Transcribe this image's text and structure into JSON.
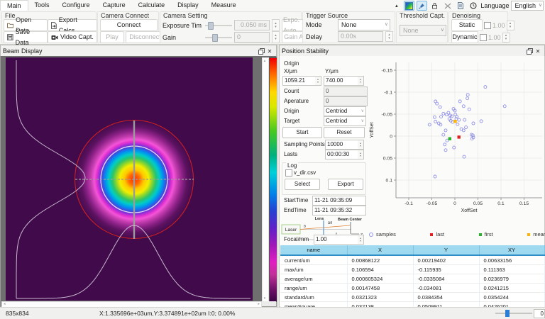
{
  "colors": {
    "accent": "#2a7fd4",
    "table_header": "#9ed9f0",
    "beam_bg": "#410a4b",
    "samples": "#9191e6",
    "last": "#e02020",
    "first": "#28b428",
    "mean": "#ffb400"
  },
  "icons": {
    "collapse-icon": "▴",
    "palette-icon": "gradient-swatch",
    "pin-icon": "pushpin",
    "lock-icon": "padlock",
    "scale-icon": "cross-arrows",
    "report-icon": "document",
    "about-icon": "clock",
    "combo-chevron": "∨",
    "spinner-up": "▴",
    "spinner-down": "▾",
    "close-icon": "✕",
    "float-icon": "overlapping-squares",
    "folder-icon": "folder",
    "save-icon": "floppy-disk",
    "export-icon": "document-arrow",
    "video-icon": "camcorder"
  },
  "menu": {
    "tabs": [
      {
        "label": "Main",
        "selected": true
      },
      {
        "label": "Tools"
      },
      {
        "label": "Configure"
      },
      {
        "label": "Capture"
      },
      {
        "label": "Calculate"
      },
      {
        "label": "Display"
      },
      {
        "label": "Measure"
      }
    ],
    "language_label": "Language",
    "language_value": "English"
  },
  "toolbar": {
    "file": {
      "title": "File",
      "open": "Open Data",
      "save": "Save Data",
      "export": "Export Calcs",
      "video": "Video Capt."
    },
    "camera_connect": {
      "title": "Camera Connect",
      "connect": "Connect",
      "play": "Play",
      "disconnect": "Disconnect"
    },
    "camera_setting": {
      "title": "Camera Setting",
      "exposure_label": "Exposure Tim",
      "exposure_value": "0.050 ms",
      "expo_auto": "Expo. Auto",
      "gain_label": "Gain",
      "gain_value": "0",
      "gain_auto": "Gain Auto"
    },
    "trigger": {
      "title": "Trigger Source",
      "mode_label": "Mode",
      "mode_value": "None",
      "delay_label": "Delay",
      "delay_value": "0.00s"
    },
    "threshold": {
      "title": "Threshold Capt.",
      "value": "None"
    },
    "denoising": {
      "title": "Denoising",
      "static_button": "Static",
      "static_value": "1.00",
      "dynamic_button": "Dynamic",
      "dynamic_value": "1.00"
    }
  },
  "beam_panel": {
    "title": "Beam Display"
  },
  "stability_panel": {
    "title": "Position Stability",
    "origin_label": "Origin",
    "x_label": "X/μm",
    "x_value": "1059.21",
    "y_label": "Y/μm",
    "y_value": "740.00",
    "count_label": "Count",
    "count_value": "0",
    "aperature_label": "Aperature",
    "aperature_value": "0",
    "origin_select_label": "Origin",
    "origin_select_value": "Centriod",
    "target_label": "Target",
    "target_value": "Centriod",
    "start_button": "Start",
    "reset_button": "Reset",
    "sampling_label": "Sampling Points",
    "sampling_value": "10000",
    "lasts_label": "Lasts",
    "lasts_value": "00:00:30",
    "log_title": "Log",
    "log_file": "v_dir.csv",
    "select_button": "Select",
    "export_button": "Export",
    "start_time_label": "StartTime",
    "start_time": "11-21 09:35:09",
    "end_time_label": "EndTime",
    "end_time": "11-21 09:35:32",
    "diagram": {
      "laser": "Laser",
      "lens": "Lens",
      "theta": "θ",
      "delta_theta": "Δθ",
      "beam_center": "Beam Center",
      "f": "f",
      "d": "d",
      "o": "O",
      "z": "Z"
    },
    "focal_label": "Focal/mm",
    "focal_value": "1.00"
  },
  "chart_data": {
    "type": "scatter",
    "xlabel": "XoffSet",
    "ylabel": "YoffSet",
    "x_ticks": [
      -0.1,
      -0.05,
      0,
      0.05,
      0.1,
      0.15
    ],
    "y_ticks": [
      -0.15,
      -0.1,
      -0.05,
      0,
      0.05,
      0.1
    ],
    "xlim": [
      -0.128,
      0.19
    ],
    "ylim_top_to_bottom": [
      -0.168,
      0.14
    ],
    "grid": true,
    "legend_position": "bottom",
    "series": [
      {
        "name": "samples",
        "marker": "circle",
        "color": "#9191e6",
        "points": [
          [
            0.066,
            -0.112
          ],
          [
            0.108,
            -0.068
          ],
          [
            0.028,
            -0.094
          ],
          [
            0.027,
            -0.086
          ],
          [
            0.011,
            -0.079
          ],
          [
            -0.042,
            -0.079
          ],
          [
            -0.039,
            -0.074
          ],
          [
            -0.032,
            -0.066
          ],
          [
            -0.003,
            -0.062
          ],
          [
            0.0,
            -0.058
          ],
          [
            0.019,
            -0.068
          ],
          [
            0.031,
            -0.061
          ],
          [
            -0.014,
            -0.053
          ],
          [
            -0.018,
            -0.049
          ],
          [
            -0.025,
            -0.051
          ],
          [
            -0.01,
            -0.047
          ],
          [
            -0.007,
            -0.045
          ],
          [
            0.001,
            -0.049
          ],
          [
            0.004,
            -0.044
          ],
          [
            -0.044,
            -0.043
          ],
          [
            -0.03,
            -0.044
          ],
          [
            -0.042,
            -0.033
          ],
          [
            -0.055,
            -0.026
          ],
          [
            -0.035,
            -0.029
          ],
          [
            -0.031,
            -0.026
          ],
          [
            -0.012,
            -0.039
          ],
          [
            -0.009,
            -0.035
          ],
          [
            -0.005,
            -0.032
          ],
          [
            0.003,
            -0.039
          ],
          [
            0.009,
            -0.037
          ],
          [
            0.021,
            -0.037
          ],
          [
            0.04,
            -0.029
          ],
          [
            0.057,
            -0.034
          ],
          [
            0.006,
            -0.027
          ],
          [
            0.014,
            -0.016
          ],
          [
            0.019,
            -0.013
          ],
          [
            -0.02,
            -0.013
          ],
          [
            0.024,
            -0.02
          ],
          [
            -0.025,
            -0.003
          ],
          [
            0.036,
            -0.003
          ],
          [
            0.039,
            -0.002
          ],
          [
            0.04,
            0.003
          ],
          [
            0.037,
            0.006
          ],
          [
            -0.017,
            0.01
          ],
          [
            -0.022,
            0.019
          ],
          [
            -0.002,
            0.026
          ],
          [
            -0.02,
            0.032
          ],
          [
            0.02,
            0.047
          ],
          [
            -0.043,
            0.092
          ]
        ]
      },
      {
        "name": "last",
        "marker": "square",
        "color": "#e02020",
        "points": [
          [
            0.0087,
            0.0022
          ]
        ]
      },
      {
        "name": "first",
        "marker": "square",
        "color": "#28b428",
        "points": [
          [
            -0.011,
            0.006
          ]
        ]
      },
      {
        "name": "mean",
        "marker": "square",
        "color": "#ffb400",
        "points": [
          [
            0.0006,
            -0.0335
          ]
        ]
      }
    ]
  },
  "table": {
    "columns": [
      "name",
      "X",
      "Y",
      "XY"
    ],
    "rows": [
      [
        "current/um",
        "0.00868122",
        "0.00219402",
        "0.00633156"
      ],
      [
        "max/um",
        "0.106594",
        "-0.115935",
        "0.111363"
      ],
      [
        "average/um",
        "0.000605324",
        "-0.0335084",
        "0.0236979"
      ],
      [
        "range/um",
        "0.00147458",
        "-0.034081",
        "0.0241215"
      ],
      [
        "standard/um",
        "0.0321323",
        "0.0384354",
        "0.0354244"
      ],
      [
        "meanSquare",
        "0.032138",
        "0.0509911",
        "0.0426201"
      ]
    ]
  },
  "status_bar": {
    "resolution": "835x834",
    "coords": "X:1.335696e+03um,Y:3.374891e+02um I:0; 0.00%",
    "slider_value": "0"
  }
}
